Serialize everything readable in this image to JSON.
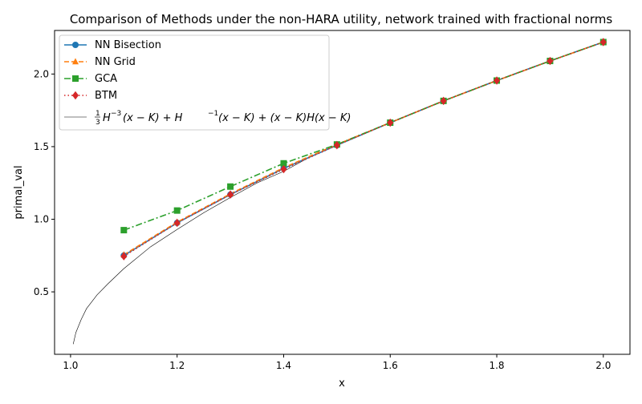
{
  "chart_data": {
    "type": "line",
    "title": "Comparison of Methods under the non-HARA utility, network trained with fractional norms",
    "xlabel": "x",
    "ylabel": "primal_val",
    "xlim": [
      0.97,
      2.05
    ],
    "ylim": [
      0.07,
      2.3
    ],
    "xticks": [
      1.0,
      1.2,
      1.4,
      1.6,
      1.8,
      2.0
    ],
    "xtick_labels": [
      "1.0",
      "1.2",
      "1.4",
      "1.6",
      "1.8",
      "2.0"
    ],
    "yticks": [
      0.5,
      1.0,
      1.5,
      2.0
    ],
    "ytick_labels": [
      "0.5",
      "1.0",
      "1.5",
      "2.0"
    ],
    "grid": false,
    "legend_position": "upper-left",
    "x": [
      1.1,
      1.2,
      1.3,
      1.4,
      1.5,
      1.6,
      1.7,
      1.8,
      1.9,
      2.0
    ],
    "series": [
      {
        "name": "NN Bisection",
        "color": "#1f77b4",
        "marker": "circle",
        "linestyle": "solid",
        "values": [
          0.75,
          0.975,
          1.17,
          1.35,
          1.51,
          1.665,
          1.815,
          1.955,
          2.09,
          2.22
        ]
      },
      {
        "name": "NN Grid",
        "color": "#ff7f0e",
        "marker": "triangle",
        "linestyle": "dashed",
        "values": [
          0.755,
          0.98,
          1.175,
          1.355,
          1.515,
          1.665,
          1.815,
          1.955,
          2.09,
          2.22
        ]
      },
      {
        "name": "GCA",
        "color": "#2ca02c",
        "marker": "square",
        "linestyle": "dashdot",
        "values": [
          0.925,
          1.06,
          1.225,
          1.385,
          1.515,
          1.665,
          1.815,
          1.955,
          2.09,
          2.22
        ]
      },
      {
        "name": "BTM",
        "color": "#d62728",
        "marker": "diamond",
        "linestyle": "dotted",
        "values": [
          0.745,
          0.975,
          1.17,
          1.345,
          1.51,
          1.665,
          1.815,
          1.955,
          2.09,
          2.22
        ]
      }
    ],
    "reference_curve": {
      "color": "#000000",
      "label_parts": [
        "1",
        "3",
        "H",
        "−3",
        "(x − K) + H",
        "−1",
        "(x − K) + (x − K)H(x − K)"
      ],
      "x": [
        1.005,
        1.01,
        1.02,
        1.03,
        1.05,
        1.07,
        1.1,
        1.15,
        1.2,
        1.25,
        1.3,
        1.35,
        1.4,
        1.45,
        1.5,
        1.55,
        1.6,
        1.7,
        1.8,
        1.9,
        2.0
      ],
      "values": [
        0.14,
        0.22,
        0.31,
        0.385,
        0.48,
        0.555,
        0.66,
        0.81,
        0.93,
        1.045,
        1.15,
        1.25,
        1.33,
        1.43,
        1.51,
        1.59,
        1.665,
        1.815,
        1.955,
        2.09,
        2.22
      ]
    }
  }
}
